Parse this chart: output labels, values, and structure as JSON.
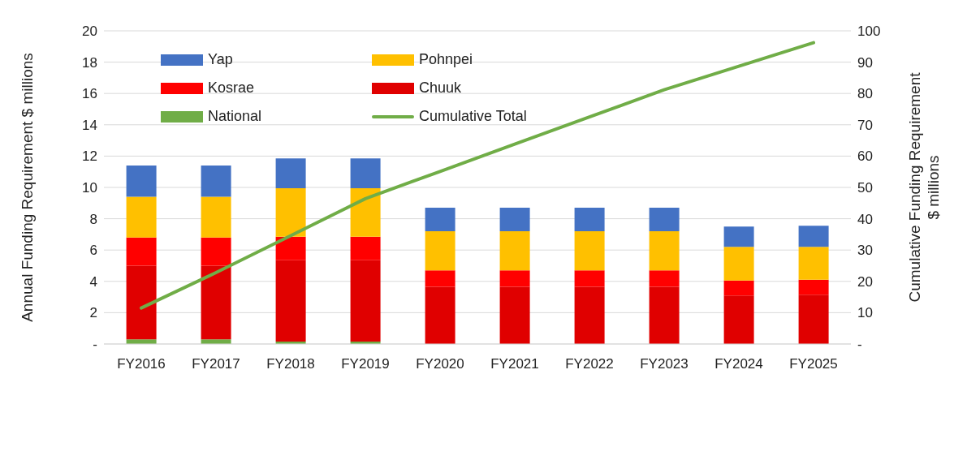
{
  "chart_data": {
    "type": "bar",
    "stacked": true,
    "categories": [
      "FY2016",
      "FY2017",
      "FY2018",
      "FY2019",
      "FY2020",
      "FY2021",
      "FY2022",
      "FY2023",
      "FY2024",
      "FY2025"
    ],
    "series": [
      {
        "name": "National",
        "color": "#70ad47",
        "values": [
          0.3,
          0.3,
          0.15,
          0.15,
          0,
          0,
          0,
          0,
          0,
          0
        ]
      },
      {
        "name": "Chuuk",
        "color": "#e00000",
        "values": [
          4.7,
          4.7,
          5.2,
          5.2,
          3.65,
          3.65,
          3.65,
          3.65,
          3.1,
          3.15
        ]
      },
      {
        "name": "Kosrae",
        "color": "#ff0000",
        "values": [
          1.8,
          1.8,
          1.5,
          1.5,
          1.05,
          1.05,
          1.05,
          1.05,
          0.95,
          0.95
        ]
      },
      {
        "name": "Pohnpei",
        "color": "#ffc000",
        "values": [
          2.6,
          2.6,
          3.1,
          3.1,
          2.5,
          2.5,
          2.5,
          2.5,
          2.15,
          2.1
        ]
      },
      {
        "name": "Yap",
        "color": "#4472c4",
        "values": [
          2.0,
          2.0,
          1.9,
          1.9,
          1.5,
          1.5,
          1.5,
          1.5,
          1.3,
          1.35
        ]
      },
      {
        "name": "Cumulative Total",
        "type": "line",
        "axis": "y2",
        "color": "#70ad47",
        "marker": "none",
        "values": [
          11.5,
          22.8,
          34.6,
          46.4,
          55.1,
          63.8,
          72.5,
          81.2,
          88.7,
          96.2
        ]
      }
    ],
    "ylabel": "Annual Funding Requirement  $ millions",
    "y2label": "Cumulative Funding Requirement\n$ millions",
    "ylim": [
      0,
      20
    ],
    "yticks": [
      {
        "value": 0,
        "label": "-"
      },
      2,
      4,
      6,
      8,
      10,
      12,
      14,
      16,
      18,
      20
    ],
    "y2lim": [
      0,
      100
    ],
    "y2ticks": [
      {
        "value": 0,
        "label": "-"
      },
      10,
      20,
      30,
      40,
      50,
      60,
      70,
      80,
      90,
      100
    ],
    "grid": "y",
    "legend": "top left"
  }
}
